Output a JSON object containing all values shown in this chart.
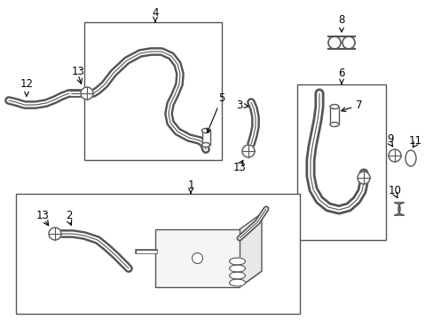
{
  "background_color": "#ffffff",
  "line_color": "#555555",
  "label_color": "#000000",
  "label_fontsize": 8.5,
  "fig_width": 4.89,
  "fig_height": 3.6,
  "dpi": 100
}
